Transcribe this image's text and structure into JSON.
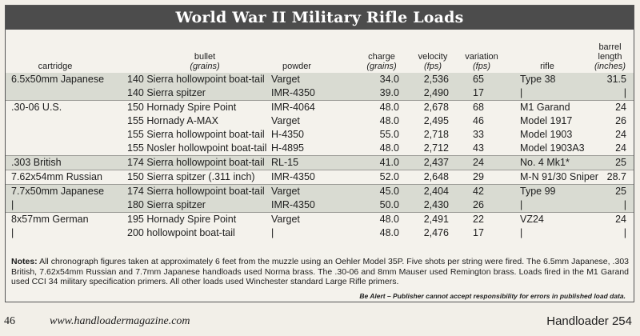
{
  "title": "World War II Military Rifle Loads",
  "headers": {
    "cartridge": "cartridge",
    "bullet": "bullet",
    "bullet_unit": "(grains)",
    "powder": "powder",
    "charge": "charge",
    "charge_unit": "(grains)",
    "velocity": "velocity",
    "velocity_unit": "(fps)",
    "variation": "variation",
    "variation_unit": "(fps)",
    "rifle": "rifle",
    "barrel1": "barrel",
    "barrel2": "length",
    "barrel_unit": "(inches)"
  },
  "rows": [
    {
      "cartridge": "6.5x50mm Japanese",
      "bullet": "140 Sierra hollowpoint boat-tail",
      "powder": "Varget",
      "charge": "34.0",
      "velocity": "2,536",
      "variation": "65",
      "rifle": "Type 38",
      "barrel": "31.5",
      "shade": true,
      "sep": false
    },
    {
      "cartridge": "",
      "bullet": "140 Sierra spitzer",
      "powder": "IMR-4350",
      "charge": "39.0",
      "velocity": "2,490",
      "variation": "17",
      "rifle": "|",
      "barrel": "|",
      "shade": true,
      "sep": false
    },
    {
      "cartridge": ".30-06 U.S.",
      "bullet": "150 Hornady Spire Point",
      "powder": "IMR-4064",
      "charge": "48.0",
      "velocity": "2,678",
      "variation": "68",
      "rifle": "M1 Garand",
      "barrel": "24",
      "shade": false,
      "sep": true
    },
    {
      "cartridge": "",
      "bullet": "155 Hornady A-MAX",
      "powder": "Varget",
      "charge": "48.0",
      "velocity": "2,495",
      "variation": "46",
      "rifle": "Model 1917",
      "barrel": "26",
      "shade": false,
      "sep": false
    },
    {
      "cartridge": "",
      "bullet": "155 Sierra hollowpoint boat-tail",
      "powder": "H-4350",
      "charge": "55.0",
      "velocity": "2,718",
      "variation": "33",
      "rifle": "Model 1903",
      "barrel": "24",
      "shade": false,
      "sep": false
    },
    {
      "cartridge": "",
      "bullet": "155 Nosler hollowpoint boat-tail",
      "powder": "H-4895",
      "charge": "48.0",
      "velocity": "2,712",
      "variation": "43",
      "rifle": "Model 1903A3",
      "barrel": "24",
      "shade": false,
      "sep": false
    },
    {
      "cartridge": ".303 British",
      "bullet": "174 Sierra hollowpoint boat-tail",
      "powder": "RL-15",
      "charge": "41.0",
      "velocity": "2,437",
      "variation": "24",
      "rifle": "No. 4 Mk1*",
      "barrel": "25",
      "shade": true,
      "sep": true
    },
    {
      "cartridge": "7.62x54mm Russian",
      "bullet": "150 Sierra spitzer (.311 inch)",
      "powder": "IMR-4350",
      "charge": "52.0",
      "velocity": "2,648",
      "variation": "29",
      "rifle": "M-N 91/30 Sniper",
      "barrel": "28.7",
      "shade": false,
      "sep": true
    },
    {
      "cartridge": "7.7x50mm Japanese",
      "bullet": "174 Sierra hollowpoint boat-tail",
      "powder": "Varget",
      "charge": "45.0",
      "velocity": "2,404",
      "variation": "42",
      "rifle": "Type 99",
      "barrel": "25",
      "shade": true,
      "sep": true
    },
    {
      "cartridge": "|",
      "bullet": "180 Sierra spitzer",
      "powder": "IMR-4350",
      "charge": "50.0",
      "velocity": "2,430",
      "variation": "26",
      "rifle": "|",
      "barrel": "|",
      "shade": true,
      "sep": false
    },
    {
      "cartridge": "8x57mm German",
      "bullet": "195 Hornady Spire Point",
      "powder": "Varget",
      "charge": "48.0",
      "velocity": "2,491",
      "variation": "22",
      "rifle": "VZ24",
      "barrel": "24",
      "shade": false,
      "sep": true
    },
    {
      "cartridge": "|",
      "bullet": "200 hollowpoint boat-tail",
      "powder": "|",
      "charge": "48.0",
      "velocity": "2,476",
      "variation": "17",
      "rifle": "|",
      "barrel": "|",
      "shade": false,
      "sep": false
    }
  ],
  "notes_label": "Notes:",
  "notes_text": " All chronograph figures taken at approximately 6 feet from the muzzle using an Oehler Model 35P. Five shots per string were fired. The 6.5mm Japanese, .303 British, 7.62x54mm Russian and 7.7mm Japanese handloads used Norma brass. The .30-06 and 8mm Mauser used Remington brass. Loads fired in the M1 Garand used CCI 34 military specification primers. All other loads used Winchester standard Large Rifle primers.",
  "alert": "Be Alert – Publisher cannot accept responsibility for errors in published load data.",
  "footer": {
    "page": "46",
    "url": "www.handloadermagazine.com",
    "issue": "Handloader 254"
  }
}
